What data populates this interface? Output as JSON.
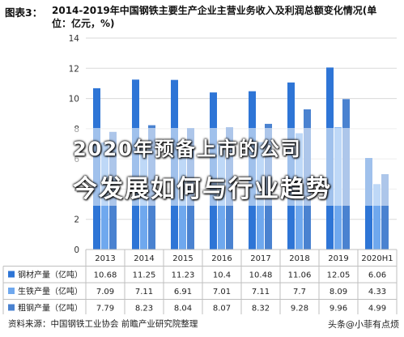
{
  "title_label": "图表3：",
  "title_main": "2014-2019年中国钢铁主要生产企业主营业务收入及利润总额变化情况(单位：亿元，%)",
  "overlay": {
    "line1": "2020年预备上市的公司",
    "line2": "今发展如何与行业趋势"
  },
  "source": "资料来源：中国钢铁工业协会 前瞻产业研究院整理",
  "credit": "头条@小菲有点烦",
  "colors": {
    "series1": "#2e75d6",
    "series2": "#6fa8ee",
    "series3": "#4a82d0",
    "grid": "#d9d9d9",
    "table_border": "#bfbfbf"
  },
  "chart_data": {
    "type": "bar",
    "categories": [
      "2013",
      "2014",
      "2015",
      "2016",
      "2017",
      "2018",
      "2019",
      "2020H1"
    ],
    "ylim": [
      0,
      14
    ],
    "yticks": [
      "0",
      "2",
      "4",
      "6",
      "8",
      "10",
      "12",
      "14"
    ],
    "grid": true,
    "series": [
      {
        "name": "钢材产量（亿吨）",
        "values": [
          10.68,
          11.25,
          11.23,
          10.4,
          10.48,
          11.06,
          12.05,
          6.06
        ]
      },
      {
        "name": "生铁产量（亿吨）",
        "values": [
          7.09,
          7.11,
          6.91,
          7.01,
          7.11,
          7.7,
          8.09,
          4.33
        ]
      },
      {
        "name": "粗钢产量（亿吨）",
        "values": [
          7.79,
          8.23,
          8.04,
          8.07,
          8.32,
          9.28,
          9.96,
          4.99
        ]
      }
    ],
    "table_values": [
      [
        "10.68",
        "11.25",
        "11.23",
        "10.4",
        "10.48",
        "11.06",
        "12.05",
        "6.06"
      ],
      [
        "7.09",
        "7.11",
        "6.91",
        "7.01",
        "7.11",
        "7.7",
        "8.09",
        "4.33"
      ],
      [
        "7.79",
        "8.23",
        "8.04",
        "8.07",
        "8.32",
        "9.28",
        "9.96",
        "4.99"
      ]
    ]
  }
}
